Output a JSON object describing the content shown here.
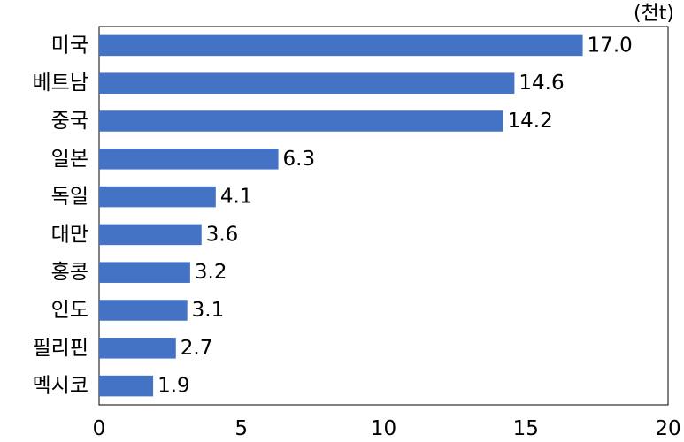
{
  "chart_data": {
    "type": "bar",
    "orientation": "horizontal",
    "unit": "(천t)",
    "categories": [
      "미국",
      "베트남",
      "중국",
      "일본",
      "독일",
      "대만",
      "홍콩",
      "인도",
      "필리핀",
      "멕시코"
    ],
    "values": [
      17.0,
      14.6,
      14.2,
      6.3,
      4.1,
      3.6,
      3.2,
      3.1,
      2.7,
      1.9
    ],
    "value_labels": [
      "17.0",
      "14.6",
      "14.2",
      "6.3",
      "4.1",
      "3.6",
      "3.2",
      "3.1",
      "2.7",
      "1.9"
    ],
    "xlim": [
      0,
      20
    ],
    "xticks": [
      "0",
      "5",
      "10",
      "15",
      "20"
    ],
    "xtick_values": [
      0,
      5,
      10,
      15,
      20
    ],
    "bar_color": "#4472c4",
    "grid": false,
    "legend": "none"
  }
}
